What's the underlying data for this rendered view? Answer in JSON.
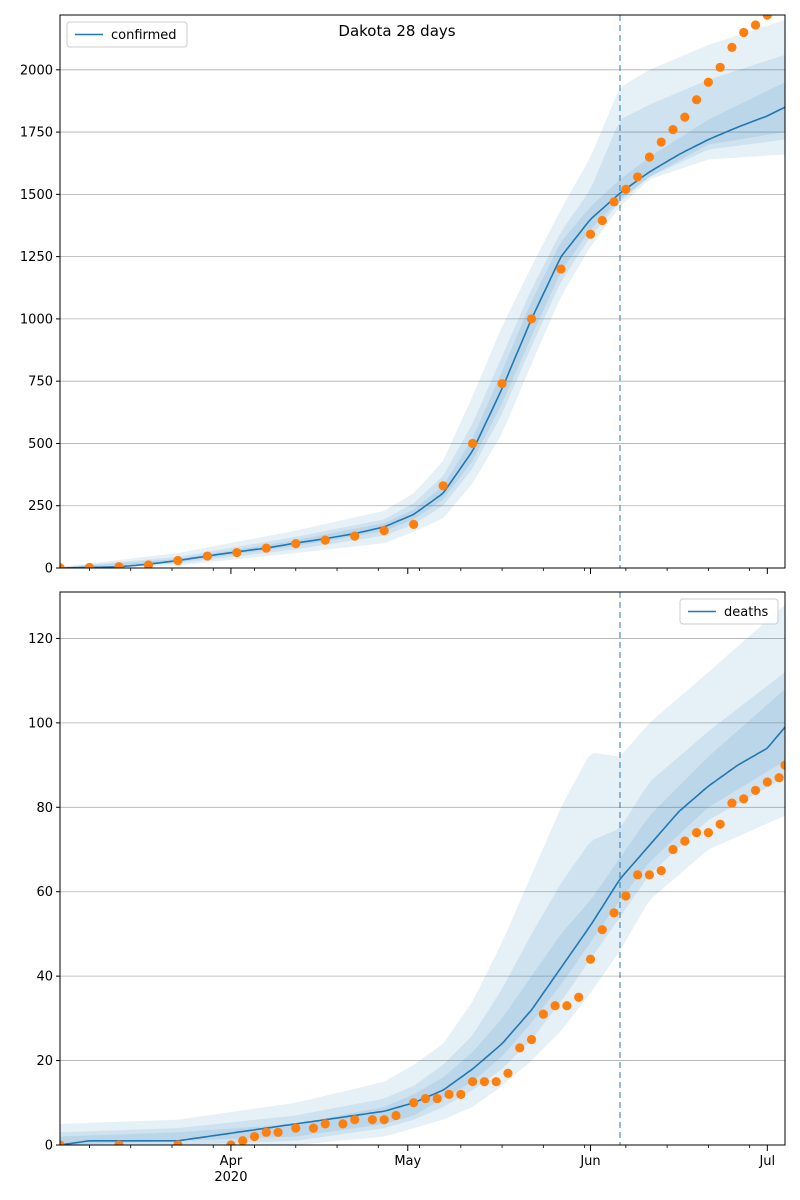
{
  "chart_data": [
    {
      "type": "line",
      "title": "Dakota 28 days",
      "legend": {
        "label": "confirmed",
        "placement": "top-left"
      },
      "ylim": [
        0,
        2220
      ],
      "yticks": [
        0,
        250,
        500,
        750,
        1000,
        1250,
        1500,
        1750,
        2000
      ],
      "xlim": [
        0,
        123
      ],
      "x_axis": {
        "type": "date",
        "start": "2020-03-03",
        "major_ticks": [
          {
            "day": 29,
            "label": "Apr"
          },
          {
            "day": 59,
            "label": "May"
          },
          {
            "day": 90,
            "label": "Jun"
          },
          {
            "day": 120,
            "label": "Jul"
          }
        ],
        "year_label": "2020"
      },
      "forecast_start_day": 95,
      "grid": "horizontal",
      "series": [
        {
          "name": "confirmed",
          "kind": "model",
          "x": [
            0,
            5,
            10,
            15,
            20,
            25,
            30,
            35,
            40,
            45,
            50,
            55,
            60,
            65,
            70,
            75,
            80,
            85,
            90,
            95,
            100,
            105,
            110,
            115,
            120,
            123
          ],
          "values": [
            0,
            2,
            5,
            15,
            30,
            48,
            65,
            80,
            100,
            118,
            138,
            165,
            215,
            300,
            470,
            720,
            1000,
            1250,
            1400,
            1505,
            1590,
            1660,
            1720,
            1770,
            1815,
            1850
          ]
        },
        {
          "name": "observed confirmed",
          "kind": "observed",
          "x": [
            0,
            5,
            10,
            15,
            20,
            25,
            30,
            35,
            40,
            45,
            50,
            55,
            60,
            65,
            70,
            75,
            80,
            85,
            90,
            92,
            94,
            96,
            98,
            100,
            102,
            104,
            106,
            108,
            110,
            112,
            114,
            116,
            118,
            120,
            121
          ],
          "values": [
            1,
            2,
            5,
            12,
            30,
            48,
            62,
            80,
            98,
            112,
            128,
            150,
            175,
            330,
            500,
            740,
            1000,
            1200,
            1340,
            1395,
            1470,
            1520,
            1570,
            1650,
            1710,
            1760,
            1810,
            1880,
            1950,
            2010,
            2090,
            2150,
            2180,
            2220,
            2240
          ]
        }
      ],
      "bands": [
        {
          "level": "outer",
          "x": [
            0,
            20,
            40,
            55,
            60,
            65,
            70,
            75,
            80,
            85,
            90,
            95,
            100,
            110,
            123
          ],
          "lower": [
            0,
            10,
            60,
            100,
            145,
            200,
            340,
            540,
            820,
            1090,
            1290,
            1450,
            1560,
            1640,
            1660
          ],
          "upper": [
            5,
            60,
            150,
            230,
            300,
            430,
            690,
            970,
            1210,
            1440,
            1650,
            1930,
            2000,
            2100,
            2200
          ]
        },
        {
          "level": "middle",
          "x": [
            0,
            20,
            40,
            55,
            60,
            65,
            70,
            75,
            80,
            85,
            90,
            95,
            100,
            110,
            123
          ],
          "lower": [
            0,
            18,
            75,
            130,
            175,
            250,
            400,
            620,
            890,
            1150,
            1330,
            1470,
            1570,
            1680,
            1720
          ],
          "upper": [
            3,
            45,
            125,
            195,
            260,
            370,
            580,
            850,
            1120,
            1350,
            1520,
            1800,
            1860,
            1960,
            2060
          ]
        },
        {
          "level": "inner",
          "x": [
            0,
            20,
            40,
            55,
            60,
            65,
            70,
            75,
            80,
            85,
            90,
            95,
            100,
            110,
            123
          ],
          "lower": [
            0,
            24,
            88,
            148,
            195,
            275,
            430,
            660,
            930,
            1190,
            1360,
            1480,
            1570,
            1700,
            1750
          ],
          "upper": [
            2,
            36,
            112,
            180,
            235,
            330,
            520,
            790,
            1070,
            1310,
            1450,
            1560,
            1650,
            1800,
            1950
          ]
        }
      ]
    },
    {
      "type": "line",
      "title": "",
      "legend": {
        "label": "deaths",
        "placement": "top-right"
      },
      "ylim": [
        0,
        131
      ],
      "yticks": [
        0,
        20,
        40,
        60,
        80,
        100,
        120
      ],
      "xlim": [
        0,
        123
      ],
      "x_axis": {
        "type": "date",
        "start": "2020-03-03",
        "major_ticks": [
          {
            "day": 29,
            "label": "Apr"
          },
          {
            "day": 59,
            "label": "May"
          },
          {
            "day": 90,
            "label": "Jun"
          },
          {
            "day": 120,
            "label": "Jul"
          }
        ],
        "year_label": "2020"
      },
      "forecast_start_day": 95,
      "grid": "horizontal",
      "series": [
        {
          "name": "deaths",
          "kind": "model",
          "x": [
            0,
            5,
            10,
            15,
            20,
            25,
            30,
            35,
            40,
            45,
            50,
            55,
            60,
            65,
            70,
            75,
            80,
            85,
            90,
            95,
            100,
            105,
            110,
            115,
            120,
            123
          ],
          "values": [
            0,
            1,
            1,
            1,
            1,
            2,
            3,
            4,
            5,
            6,
            7,
            8,
            10,
            13,
            18,
            24,
            32,
            42,
            52,
            63,
            71,
            79,
            85,
            90,
            94,
            99
          ]
        },
        {
          "name": "observed deaths",
          "kind": "observed",
          "x": [
            0,
            10,
            20,
            29,
            31,
            33,
            35,
            37,
            40,
            43,
            45,
            48,
            50,
            53,
            55,
            57,
            60,
            62,
            64,
            66,
            68,
            70,
            72,
            74,
            76,
            78,
            80,
            82,
            84,
            86,
            88,
            90,
            92,
            94,
            96,
            98,
            100,
            102,
            104,
            106,
            108,
            110,
            112,
            114,
            116,
            118,
            120,
            122,
            123
          ],
          "values": [
            0,
            0,
            0,
            0,
            1,
            2,
            3,
            3,
            4,
            4,
            5,
            5,
            6,
            6,
            6,
            7,
            10,
            11,
            11,
            12,
            12,
            15,
            15,
            15,
            17,
            23,
            25,
            31,
            33,
            33,
            35,
            44,
            51,
            55,
            59,
            64,
            64,
            65,
            70,
            72,
            74,
            74,
            76,
            81,
            82,
            84,
            86,
            87,
            90
          ]
        }
      ],
      "bands": [
        {
          "level": "outer",
          "x": [
            0,
            20,
            40,
            55,
            60,
            65,
            70,
            75,
            80,
            85,
            90,
            95,
            100,
            110,
            123
          ],
          "lower": [
            0,
            0,
            0,
            2,
            4,
            6,
            9,
            14,
            20,
            27,
            36,
            46,
            58,
            70,
            78
          ],
          "upper": [
            5,
            6,
            10,
            15,
            19,
            24,
            34,
            48,
            64,
            80,
            93,
            92,
            100,
            112,
            128
          ]
        },
        {
          "level": "middle",
          "x": [
            0,
            20,
            40,
            55,
            60,
            65,
            70,
            75,
            80,
            85,
            90,
            95,
            100,
            110,
            123
          ],
          "lower": [
            0,
            0,
            1,
            4,
            6,
            9,
            13,
            18,
            25,
            34,
            44,
            54,
            64,
            77,
            87
          ],
          "upper": [
            3,
            4,
            7,
            11,
            14,
            19,
            26,
            37,
            50,
            62,
            72,
            75,
            86,
            98,
            112
          ]
        },
        {
          "level": "inner",
          "x": [
            0,
            20,
            40,
            55,
            60,
            65,
            70,
            75,
            80,
            85,
            90,
            95,
            100,
            110,
            123
          ],
          "lower": [
            0,
            1,
            2,
            5,
            7,
            11,
            15,
            21,
            29,
            38,
            48,
            58,
            67,
            80,
            91
          ],
          "upper": [
            2,
            3,
            5,
            9,
            12,
            16,
            22,
            30,
            40,
            50,
            58,
            68,
            78,
            92,
            108
          ]
        }
      ]
    }
  ]
}
